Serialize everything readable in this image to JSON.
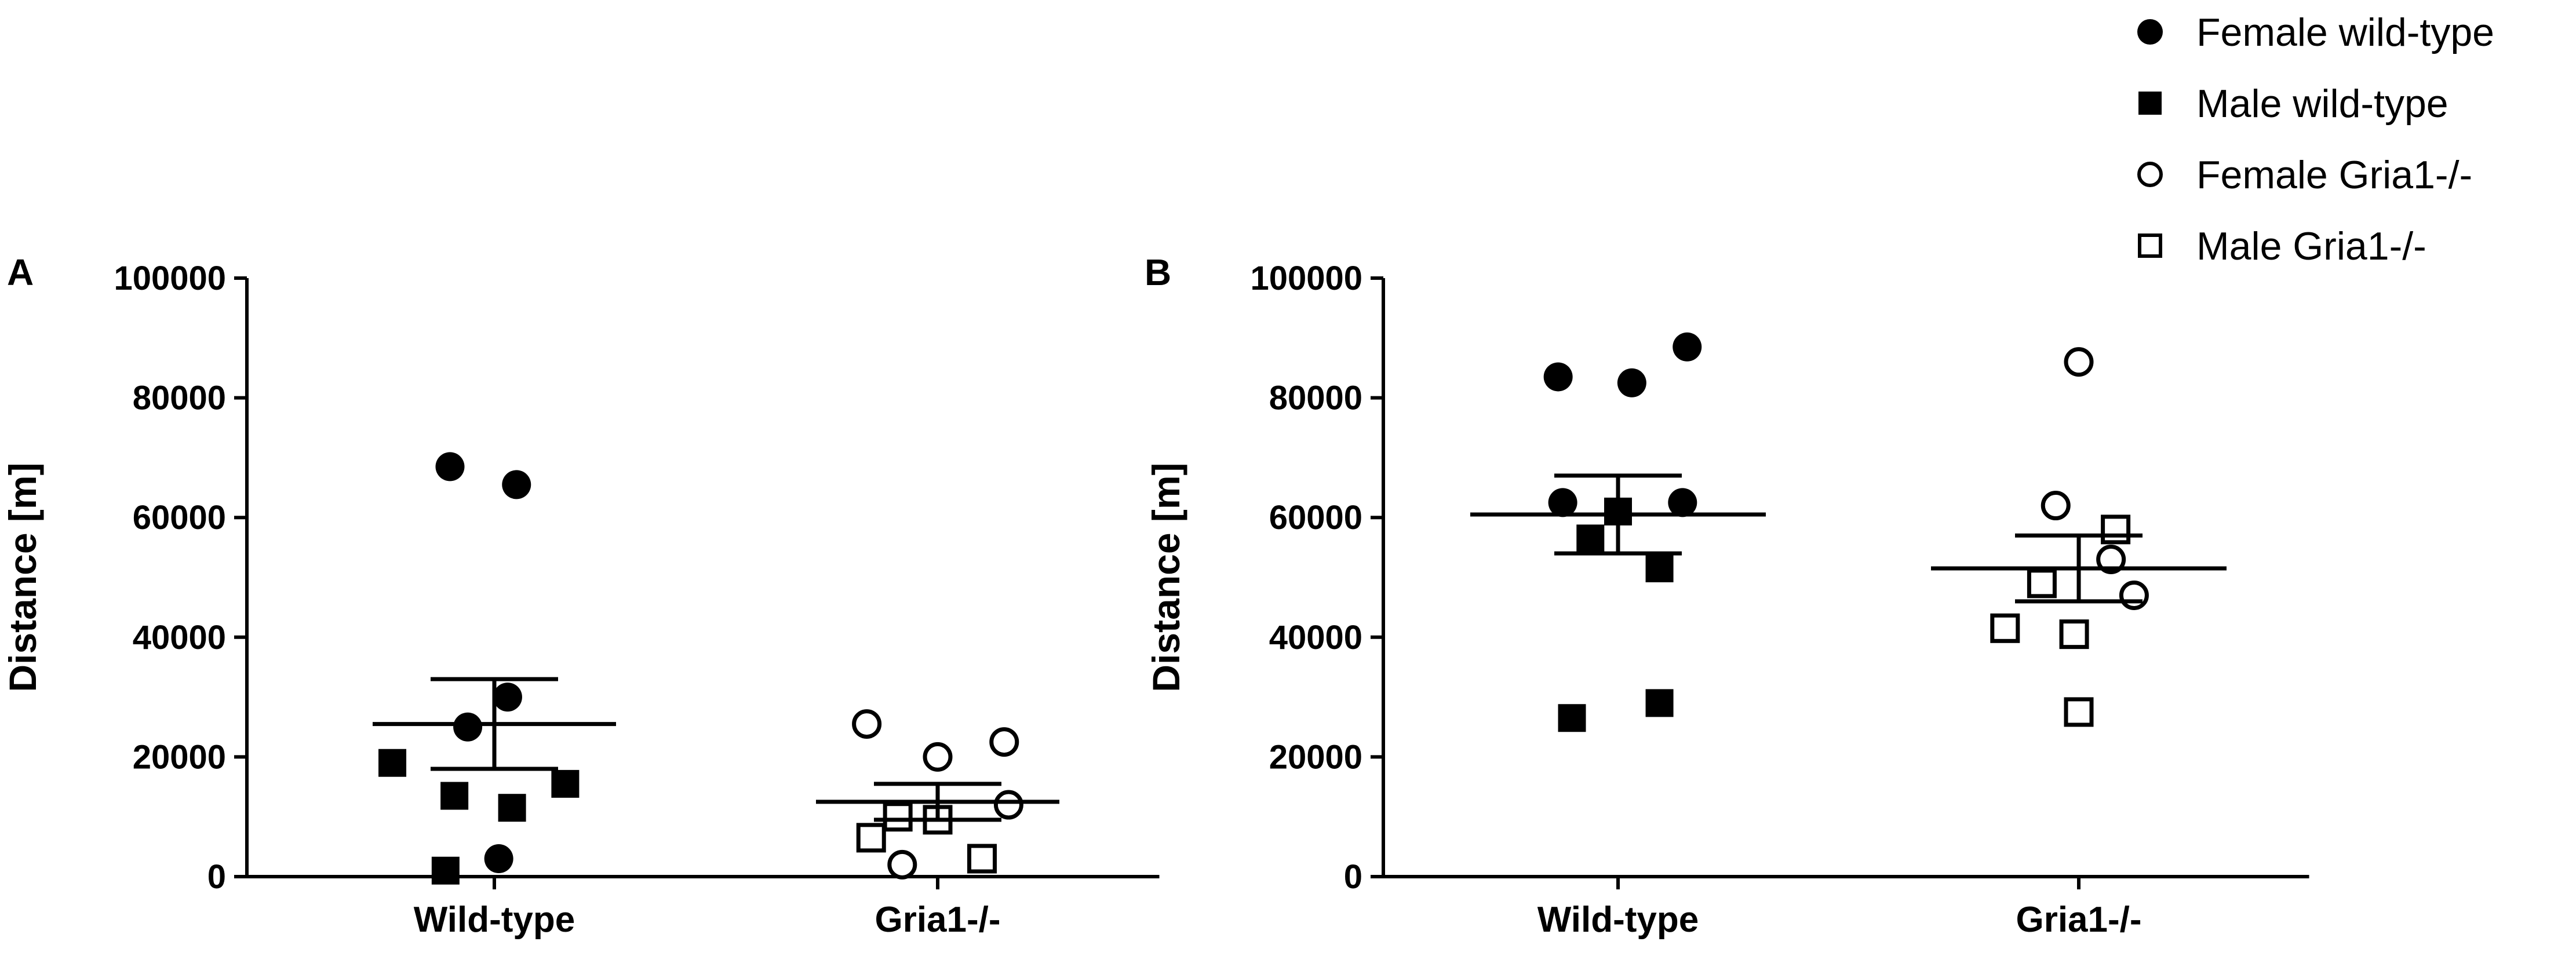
{
  "legend": [
    {
      "label": "Female wild-type",
      "marker": "filled-circle"
    },
    {
      "label": "Male wild-type",
      "marker": "filled-square"
    },
    {
      "label": "Female Gria1-/-",
      "marker": "open-circle"
    },
    {
      "label": "Male Gria1-/-",
      "marker": "open-square"
    }
  ],
  "chart_data": [
    {
      "panel": "A",
      "type": "scatter",
      "categories": [
        "Wild-type",
        "Gria1-/-"
      ],
      "ylabel": "Distance [m]",
      "ylim": [
        0,
        100000
      ],
      "yticks": [
        "0",
        "20000",
        "40000",
        "60000",
        "80000",
        "100000"
      ],
      "groups": [
        {
          "category": "Wild-type",
          "mean": 25500,
          "sem_upper": 33000,
          "sem_lower": 18000,
          "points": [
            {
              "sex": "female",
              "value": 68500,
              "off": -0.1
            },
            {
              "sex": "female",
              "value": 65500,
              "off": 0.05
            },
            {
              "sex": "female",
              "value": 30000,
              "off": 0.03
            },
            {
              "sex": "female",
              "value": 25000,
              "off": -0.06
            },
            {
              "sex": "female",
              "value": 3000,
              "off": 0.01
            },
            {
              "sex": "male",
              "value": 19000,
              "off": -0.23
            },
            {
              "sex": "male",
              "value": 15500,
              "off": 0.16
            },
            {
              "sex": "male",
              "value": 13500,
              "off": -0.09
            },
            {
              "sex": "male",
              "value": 11500,
              "off": 0.04
            },
            {
              "sex": "male",
              "value": 1000,
              "off": -0.11
            }
          ]
        },
        {
          "category": "Gria1-/-",
          "mean": 12500,
          "sem_upper": 15500,
          "sem_lower": 9500,
          "points": [
            {
              "sex": "female",
              "value": 25500,
              "off": -0.16
            },
            {
              "sex": "female",
              "value": 22500,
              "off": 0.15
            },
            {
              "sex": "female",
              "value": 20000,
              "off": 0.0
            },
            {
              "sex": "female",
              "value": 12000,
              "off": 0.16
            },
            {
              "sex": "female",
              "value": 2000,
              "off": -0.08
            },
            {
              "sex": "male",
              "value": 10000,
              "off": -0.09
            },
            {
              "sex": "male",
              "value": 9500,
              "off": 0.0
            },
            {
              "sex": "male",
              "value": 6500,
              "off": -0.15
            },
            {
              "sex": "male",
              "value": 3000,
              "off": 0.1
            }
          ]
        }
      ]
    },
    {
      "panel": "B",
      "type": "scatter",
      "categories": [
        "Wild-type",
        "Gria1-/-"
      ],
      "ylabel": "Distance [m]",
      "ylim": [
        0,
        100000
      ],
      "yticks": [
        "0",
        "20000",
        "40000",
        "60000",
        "80000",
        "100000"
      ],
      "groups": [
        {
          "category": "Wild-type",
          "mean": 60500,
          "sem_upper": 67000,
          "sem_lower": 54000,
          "points": [
            {
              "sex": "female",
              "value": 88500,
              "off": 0.15
            },
            {
              "sex": "female",
              "value": 83500,
              "off": -0.13
            },
            {
              "sex": "female",
              "value": 82500,
              "off": 0.03
            },
            {
              "sex": "female",
              "value": 62500,
              "off": -0.12
            },
            {
              "sex": "female",
              "value": 62500,
              "off": 0.14
            },
            {
              "sex": "male",
              "value": 61000,
              "off": 0.0
            },
            {
              "sex": "male",
              "value": 56500,
              "off": -0.06
            },
            {
              "sex": "male",
              "value": 51500,
              "off": 0.09
            },
            {
              "sex": "male",
              "value": 29000,
              "off": 0.09
            },
            {
              "sex": "male",
              "value": 26500,
              "off": -0.1
            }
          ]
        },
        {
          "category": "Gria1-/-",
          "mean": 51500,
          "sem_upper": 57000,
          "sem_lower": 46000,
          "points": [
            {
              "sex": "female",
              "value": 86000,
              "off": 0.0
            },
            {
              "sex": "female",
              "value": 62000,
              "off": -0.05
            },
            {
              "sex": "female",
              "value": 53000,
              "off": 0.07
            },
            {
              "sex": "female",
              "value": 47000,
              "off": 0.12
            },
            {
              "sex": "male",
              "value": 58000,
              "off": 0.08
            },
            {
              "sex": "male",
              "value": 49000,
              "off": -0.08
            },
            {
              "sex": "male",
              "value": 41500,
              "off": -0.16
            },
            {
              "sex": "male",
              "value": 40500,
              "off": -0.01
            },
            {
              "sex": "male",
              "value": 27500,
              "off": 0.0
            }
          ]
        }
      ]
    }
  ]
}
